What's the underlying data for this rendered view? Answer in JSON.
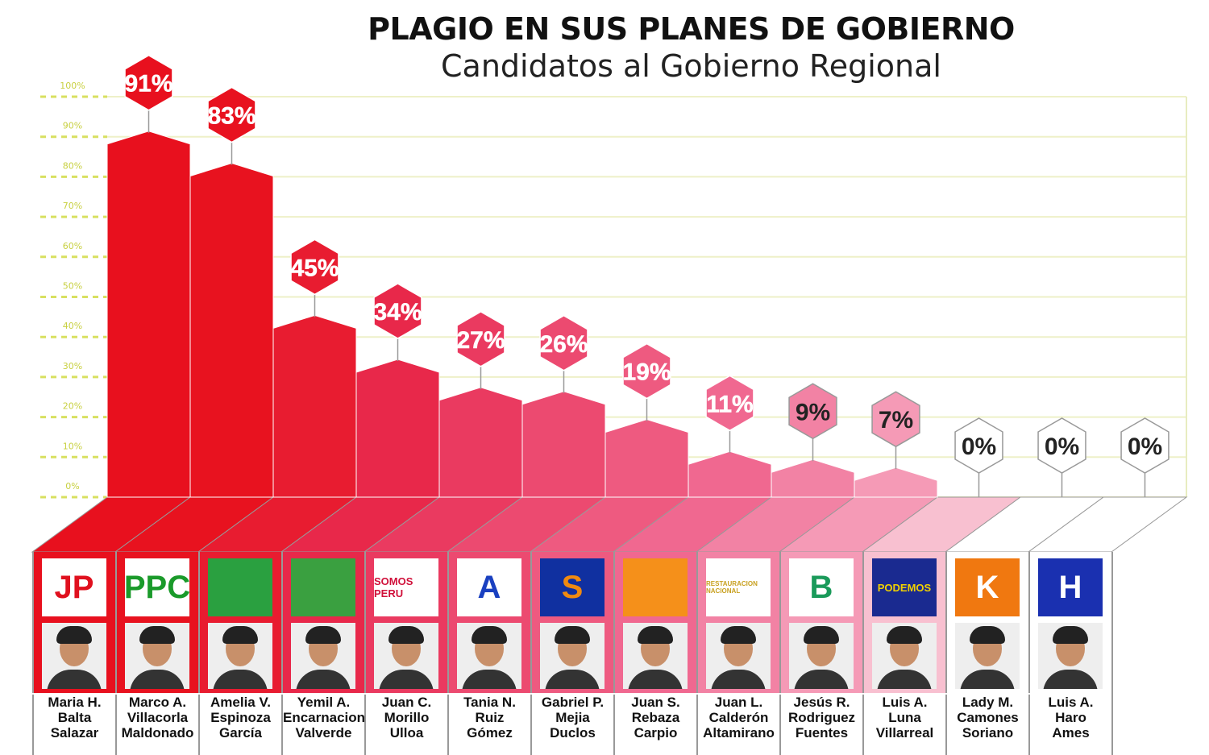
{
  "chart_data": {
    "type": "bar",
    "title": "PLAGIO EN SUS PLANES DE GOBIERNO",
    "subtitle": "Candidatos al Gobierno Regional",
    "ylim": [
      0,
      100
    ],
    "yticks": [
      "0%",
      "10%",
      "20%",
      "30%",
      "40%",
      "50%",
      "60%",
      "70%",
      "80%",
      "90%",
      "100%"
    ],
    "grid": true,
    "categories": [
      "Maria H. Balta Salazar",
      "Marco A. Villacorla Maldonado",
      "Amelia V. Espinoza García",
      "Yemil A. Encarnacion Valverde",
      "Juan C. Morillo Ulloa",
      "Tania N. Ruiz Gómez",
      "Gabriel P. Mejia Duclos",
      "Juan S. Rebaza Carpio",
      "Juan L. Calderón Altamirano",
      "Jesús R. Rodriguez Fuentes",
      "Luis A. Luna Villarreal",
      "Lady M. Camones Soriano",
      "Luis A. Haro Ames"
    ],
    "values": [
      91,
      83,
      45,
      34,
      27,
      26,
      19,
      11,
      9,
      7,
      0,
      0,
      0
    ],
    "value_labels": [
      "91%",
      "83%",
      "45%",
      "34%",
      "27%",
      "26%",
      "19%",
      "11%",
      "9%",
      "7%",
      "0%",
      "0%",
      "0%"
    ]
  },
  "candidates": [
    {
      "name": [
        "Maria H.",
        "Balta",
        "Salazar"
      ],
      "logo": "JP",
      "logo_fg": "#e0101e",
      "logo_bg": "#fff",
      "color": "#e8101e"
    },
    {
      "name": [
        "Marco A.",
        "Villacorla",
        "Maldonado"
      ],
      "logo": "PPC",
      "logo_fg": "#1a9a2a",
      "logo_bg": "#fff",
      "color": "#e8121f"
    },
    {
      "name": [
        "Amelia V.",
        "Espinoza",
        "García"
      ],
      "logo": "",
      "logo_fg": "#1a9a2a",
      "logo_bg": "#2aa040",
      "color": "#e81c30"
    },
    {
      "name": [
        "Yemil A.",
        "Encarnacion",
        "Valverde"
      ],
      "logo": "",
      "logo_fg": "#fff",
      "logo_bg": "#3aa040",
      "color": "#e8284a"
    },
    {
      "name": [
        "Juan C.",
        "Morillo",
        "Ulloa"
      ],
      "logo": "SOMOS PERU",
      "logo_fg": "#d0103a",
      "logo_bg": "#fff",
      "color": "#ea3a60"
    },
    {
      "name": [
        "Tania N.",
        "Ruiz",
        "Gómez"
      ],
      "logo": "A",
      "logo_fg": "#1a40c0",
      "logo_bg": "#fff",
      "color": "#ec4a70"
    },
    {
      "name": [
        "Gabriel P.",
        "Mejia",
        "Duclos"
      ],
      "logo": "S",
      "logo_fg": "#f08a10",
      "logo_bg": "#1030a0",
      "color": "#ee5a80"
    },
    {
      "name": [
        "Juan S.",
        "Rebaza",
        "Carpio"
      ],
      "logo": "",
      "logo_fg": "#fff",
      "logo_bg": "#f5901a",
      "color": "#f06890"
    },
    {
      "name": [
        "Juan L.",
        "Calderón",
        "Altamirano"
      ],
      "logo": "RESTAURACION NACIONAL",
      "logo_fg": "#c8a020",
      "logo_bg": "#fff",
      "color": "#f282a4"
    },
    {
      "name": [
        "Jesús R.",
        "Rodriguez",
        "Fuentes"
      ],
      "logo": "B",
      "logo_fg": "#1a9a5a",
      "logo_bg": "#fff",
      "color": "#f59ab6"
    },
    {
      "name": [
        "Luis A.",
        "Luna",
        "Villarreal"
      ],
      "logo": "PODEMOS",
      "logo_fg": "#f0d000",
      "logo_bg": "#1a2a90",
      "color": "#f8c0d0"
    },
    {
      "name": [
        "Lady M.",
        "Camones",
        "Soriano"
      ],
      "logo": "K",
      "logo_fg": "#fff",
      "logo_bg": "#f07810",
      "color": "#ffffff"
    },
    {
      "name": [
        "Luis A.",
        "Haro",
        "Ames"
      ],
      "logo": "H",
      "logo_fg": "#fff",
      "logo_bg": "#1a30b0",
      "color": "#ffffff"
    }
  ],
  "colors": {
    "grid": "#d8e060",
    "axis_label": "#c8d040"
  }
}
